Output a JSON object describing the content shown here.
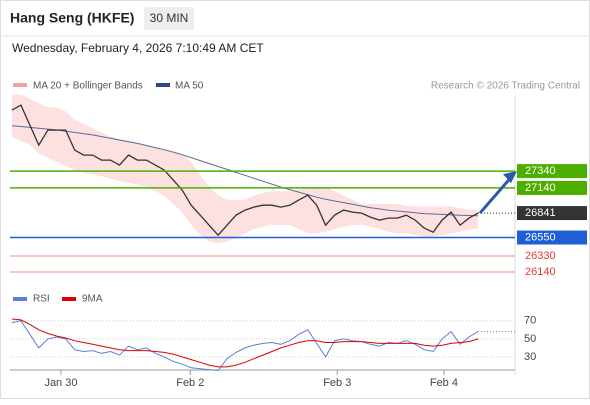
{
  "header": {
    "title": "Hang Seng (HKFE)",
    "interval": "30 MIN",
    "date": "Wednesday, February 4, 2026 7:10:49 AM CET"
  },
  "chart_data": [
    {
      "type": "price",
      "legend": [
        "MA 20 + Bollinger Bands",
        "MA 50"
      ],
      "source": "Research © 2026 Trading Central",
      "xlim": [
        -0.217,
        56.13
      ],
      "xticks": [
        {
          "value": 5.47,
          "label": "Jan 30"
        },
        {
          "value": 19.9,
          "label": "Feb 2"
        },
        {
          "value": 36.3,
          "label": "Feb 3"
        },
        {
          "value": 48.2,
          "label": "Feb 4"
        }
      ],
      "ylim": [
        26045,
        28245
      ],
      "series": [
        {
          "name": "Price",
          "color": "#333333",
          "values": [
            28066,
            28125,
            27887,
            27649,
            27828,
            27828,
            27828,
            27590,
            27530,
            27530,
            27471,
            27471,
            27411,
            27530,
            27471,
            27471,
            27411,
            27352,
            27233,
            27114,
            26935,
            26816,
            26697,
            26578,
            26697,
            26816,
            26876,
            26912,
            26935,
            26935,
            26912,
            26935,
            26995,
            27054,
            26935,
            26697,
            26816,
            26876,
            26852,
            26840,
            26793,
            26757,
            26781,
            26781,
            26816,
            26757,
            26662,
            26614,
            26757,
            26852,
            26697,
            26781,
            26841
          ]
        },
        {
          "name": "MA 50",
          "color": "#5b6a9a",
          "values": [
            27880,
            27870,
            27860,
            27850,
            27840,
            27830,
            27815,
            27800,
            27785,
            27770,
            27750,
            27730,
            27710,
            27690,
            27670,
            27645,
            27620,
            27595,
            27565,
            27535,
            27500,
            27465,
            27430,
            27395,
            27360,
            27325,
            27290,
            27255,
            27220,
            27185,
            27150,
            27120,
            27090,
            27060,
            27030,
            27005,
            26985,
            26965,
            26945,
            26925,
            26905,
            26890,
            26875,
            26865,
            26855,
            26845,
            26835,
            26830,
            26825,
            26820,
            26815,
            26812,
            26810
          ]
        },
        {
          "name": "Bollinger Upper",
          "color": "#fcd3d3",
          "values": [
            28250,
            28250,
            28200,
            28150,
            28100,
            28100,
            28050,
            27950,
            27900,
            27850,
            27800,
            27750,
            27720,
            27700,
            27680,
            27650,
            27620,
            27600,
            27580,
            27550,
            27450,
            27300,
            27150,
            27050,
            27000,
            27000,
            27000,
            27050,
            27080,
            27100,
            27100,
            27100,
            27120,
            27150,
            27150,
            27150,
            27100,
            27050,
            27000,
            26950,
            26950,
            26950,
            26950,
            26950,
            26930,
            26920,
            26920,
            26920,
            26920,
            26920,
            26900,
            26880,
            26880
          ]
        },
        {
          "name": "Bollinger Lower",
          "color": "#fcd3d3",
          "values": [
            27750,
            27700,
            27650,
            27550,
            27500,
            27450,
            27400,
            27350,
            27320,
            27300,
            27280,
            27250,
            27220,
            27200,
            27180,
            27150,
            27100,
            27050,
            26950,
            26850,
            26700,
            26580,
            26500,
            26480,
            26500,
            26550,
            26600,
            26650,
            26680,
            26700,
            26700,
            26700,
            26650,
            26600,
            26600,
            26620,
            26650,
            26680,
            26700,
            26700,
            26680,
            26650,
            26620,
            26600,
            26600,
            26580,
            26560,
            26560,
            26580,
            26600,
            26620,
            26640,
            26660
          ]
        }
      ],
      "levels": [
        {
          "value": 27340,
          "color": "#4caf00",
          "style": "box"
        },
        {
          "value": 27140,
          "color": "#4caf00",
          "style": "box"
        },
        {
          "value": 26841,
          "color": "#333333",
          "style": "current"
        },
        {
          "value": 26550,
          "color": "#1f5fd6",
          "style": "box"
        },
        {
          "value": 26330,
          "color": "#e53935",
          "style": "text"
        },
        {
          "value": 26140,
          "color": "#e53935",
          "style": "text"
        }
      ]
    },
    {
      "type": "oscillator",
      "legend": [
        "RSI",
        "9MA"
      ],
      "xlim": [
        -0.217,
        56.13
      ],
      "ylim": [
        10,
        93
      ],
      "yticks": [
        70,
        50,
        30
      ],
      "series": [
        {
          "name": "RSI",
          "color": "#5b7fd6",
          "values": [
            68,
            70,
            55,
            40,
            50,
            52,
            50,
            38,
            36,
            37,
            34,
            36,
            32,
            42,
            38,
            40,
            34,
            30,
            25,
            22,
            18,
            17,
            16,
            15,
            28,
            35,
            40,
            43,
            45,
            46,
            44,
            48,
            55,
            60,
            45,
            30,
            48,
            50,
            48,
            47,
            44,
            42,
            46,
            45,
            48,
            44,
            38,
            36,
            50,
            58,
            44,
            52,
            58
          ]
        },
        {
          "name": "9MA",
          "color": "#e00000",
          "values": [
            72,
            71,
            66,
            60,
            56,
            53,
            51,
            48,
            46,
            44,
            42,
            40,
            38,
            37,
            37,
            37,
            36,
            35,
            33,
            30,
            27,
            24,
            21,
            19,
            19,
            21,
            24,
            28,
            32,
            36,
            40,
            43,
            46,
            48,
            48,
            46,
            46,
            47,
            47,
            47,
            46,
            45,
            45,
            45,
            45,
            45,
            43,
            42,
            43,
            45,
            46,
            47,
            50
          ]
        }
      ]
    }
  ]
}
